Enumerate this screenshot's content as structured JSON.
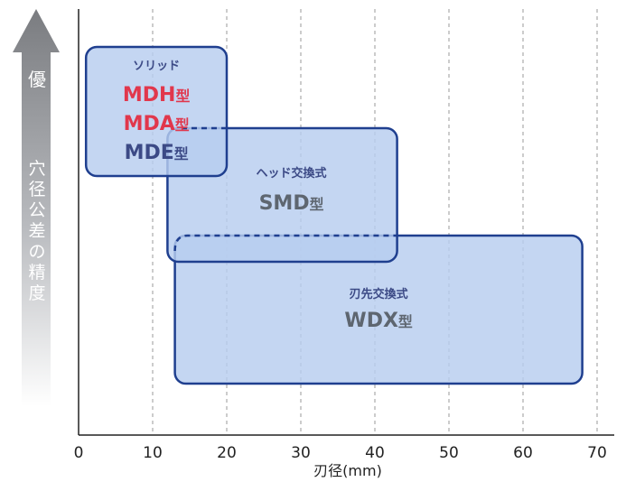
{
  "chart_data": {
    "type": "range-bar",
    "xlabel": "刃径(mm)",
    "x_ticks": [
      "0",
      "10",
      "20",
      "30",
      "40",
      "50",
      "60",
      "70"
    ],
    "xlim": [
      0,
      72
    ],
    "ylabel": "穴径公差の精度",
    "y_top_label": "優",
    "grid": "vertical-dashed",
    "colors": {
      "box_fill": "#b7cdef",
      "box_stroke": "#1f3f8f",
      "red": "#e1374c",
      "navy": "#3c4a86",
      "gray_text": "#5e6670",
      "arrow": "#7d7f82"
    },
    "series": [
      {
        "category": "ソリッド",
        "x_range": [
          1,
          20
        ],
        "types": [
          {
            "label": "MDH型",
            "color": "red"
          },
          {
            "label": "MDA型",
            "color": "red"
          },
          {
            "label": "MDE型",
            "color": "navy"
          }
        ]
      },
      {
        "category": "ヘッド交換式",
        "x_range": [
          12,
          43
        ],
        "types": [
          {
            "label": "SMD型",
            "color": "gray_text"
          }
        ]
      },
      {
        "category": "刃先交換式",
        "x_range": [
          13,
          68
        ],
        "types": [
          {
            "label": "WDX型",
            "color": "gray_text"
          }
        ]
      }
    ]
  }
}
